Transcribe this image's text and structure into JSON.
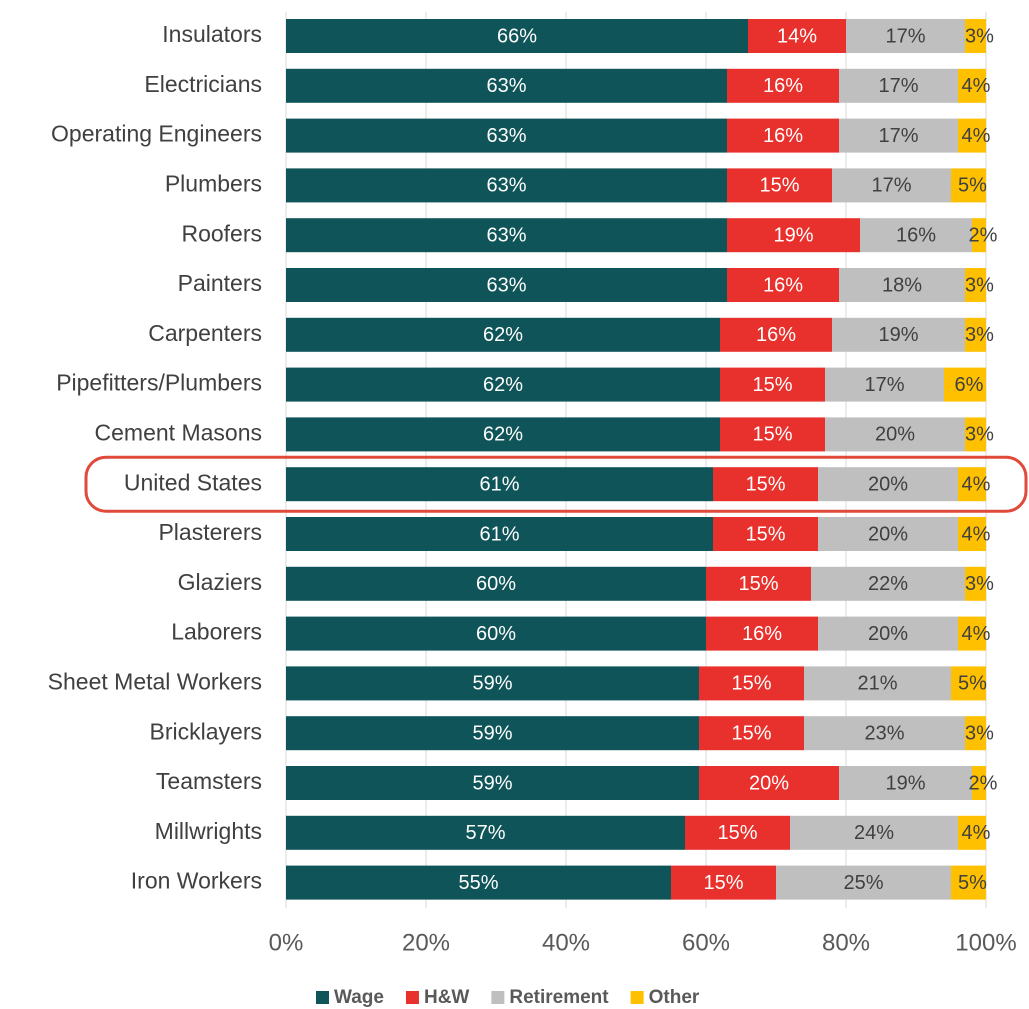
{
  "chart_data": {
    "type": "stacked_bar_horizontal",
    "categories": [
      "Insulators",
      "Electricians",
      "Operating Engineers",
      "Plumbers",
      "Roofers",
      "Painters",
      "Carpenters",
      "Pipefitters/Plumbers",
      "Cement Masons",
      "United States",
      "Plasterers",
      "Glaziers",
      "Laborers",
      "Sheet Metal Workers",
      "Bricklayers",
      "Teamsters",
      "Millwrights",
      "Iron Workers"
    ],
    "series": [
      {
        "name": "Wage",
        "color": "#0e5458",
        "values": [
          66,
          63,
          63,
          63,
          63,
          63,
          62,
          62,
          62,
          61,
          61,
          60,
          60,
          59,
          59,
          59,
          57,
          55
        ],
        "value_labels": [
          "66%",
          "63%",
          "63%",
          "63%",
          "63%",
          "63%",
          "62%",
          "62%",
          "62%",
          "61%",
          "61%",
          "60%",
          "60%",
          "59%",
          "59%",
          "59%",
          "57%",
          "55%"
        ]
      },
      {
        "name": "H&W",
        "color": "#e8302c",
        "values": [
          14,
          16,
          16,
          15,
          19,
          16,
          16,
          15,
          15,
          15,
          15,
          15,
          16,
          15,
          15,
          20,
          15,
          15
        ],
        "value_labels": [
          "14%",
          "16%",
          "16%",
          "15%",
          "19%",
          "16%",
          "16%",
          "15%",
          "15%",
          "15%",
          "15%",
          "15%",
          "16%",
          "15%",
          "15%",
          "20%",
          "15%",
          "15%"
        ]
      },
      {
        "name": "Retirement",
        "color": "#bfbfbf",
        "values": [
          17,
          17,
          17,
          17,
          16,
          18,
          19,
          17,
          20,
          20,
          20,
          22,
          20,
          21,
          23,
          19,
          24,
          25
        ],
        "value_labels": [
          "17%",
          "17%",
          "17%",
          "17%",
          "16%",
          "18%",
          "19%",
          "17%",
          "20%",
          "20%",
          "20%",
          "22%",
          "20%",
          "21%",
          "23%",
          "19%",
          "24%",
          "25%"
        ]
      },
      {
        "name": "Other",
        "color": "#ffc000",
        "values": [
          3,
          4,
          4,
          5,
          2,
          3,
          3,
          6,
          3,
          4,
          4,
          3,
          4,
          5,
          3,
          2,
          4,
          5
        ],
        "value_labels": [
          "3%",
          "4%",
          "4%",
          "5%",
          "2%",
          "3%",
          "3%",
          "6%",
          "3%",
          "4%",
          "4%",
          "3%",
          "4%",
          "5%",
          "3%",
          "2%",
          "4%",
          "5%"
        ]
      }
    ],
    "xlim": [
      0,
      100
    ],
    "xticks": [
      {
        "value": 0,
        "label": "0%"
      },
      {
        "value": 20,
        "label": "20%"
      },
      {
        "value": 40,
        "label": "40%"
      },
      {
        "value": 60,
        "label": "60%"
      },
      {
        "value": 80,
        "label": "80%"
      },
      {
        "value": 100,
        "label": "100%"
      }
    ],
    "grid": true,
    "legend": "bottom"
  }
}
